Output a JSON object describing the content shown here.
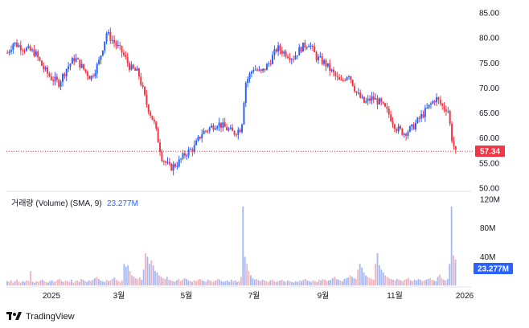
{
  "chart_data": {
    "type": "candlestick",
    "price_axis": {
      "range": [
        50,
        85
      ],
      "ticks": [
        "85.00",
        "80.00",
        "75.00",
        "70.00",
        "65.00",
        "60.00",
        "55.00",
        "50.00"
      ]
    },
    "last_price": "57.34",
    "x_ticks": [
      "2025",
      "3월",
      "5월",
      "7월",
      "9월",
      "11월",
      "2026"
    ],
    "volume": {
      "legend": "거래량 (Volume) (SMA, 9)",
      "sma_value": "23.277M",
      "ticks": [
        "120M",
        "80M",
        "40M"
      ],
      "range": [
        0,
        120
      ],
      "sma_tag": "23.277M"
    },
    "price_path": [
      [
        0,
        77
      ],
      [
        3,
        79
      ],
      [
        8,
        78
      ],
      [
        14,
        77
      ],
      [
        18,
        74
      ],
      [
        22,
        72
      ],
      [
        26,
        71
      ],
      [
        30,
        74
      ],
      [
        34,
        76
      ],
      [
        38,
        74
      ],
      [
        42,
        72
      ],
      [
        46,
        75
      ],
      [
        50,
        81
      ],
      [
        54,
        79
      ],
      [
        58,
        77
      ],
      [
        62,
        74
      ],
      [
        66,
        73
      ],
      [
        70,
        67
      ],
      [
        74,
        63
      ],
      [
        78,
        56
      ],
      [
        82,
        54
      ],
      [
        86,
        55
      ],
      [
        90,
        57
      ],
      [
        94,
        58
      ],
      [
        98,
        61
      ],
      [
        102,
        62
      ],
      [
        106,
        63
      ],
      [
        110,
        62
      ],
      [
        114,
        61
      ],
      [
        118,
        62
      ],
      [
        120,
        71
      ],
      [
        124,
        74
      ],
      [
        128,
        73
      ],
      [
        132,
        75
      ],
      [
        136,
        78
      ],
      [
        140,
        77
      ],
      [
        144,
        76
      ],
      [
        148,
        78
      ],
      [
        152,
        79
      ],
      [
        156,
        76
      ],
      [
        160,
        75
      ],
      [
        164,
        73
      ],
      [
        168,
        71
      ],
      [
        172,
        73
      ],
      [
        176,
        69
      ],
      [
        180,
        67
      ],
      [
        184,
        68
      ],
      [
        188,
        67
      ],
      [
        192,
        65
      ],
      [
        196,
        62
      ],
      [
        200,
        61
      ],
      [
        204,
        62
      ],
      [
        208,
        64
      ],
      [
        212,
        66
      ],
      [
        216,
        68
      ],
      [
        220,
        66
      ],
      [
        222,
        66
      ],
      [
        224,
        60
      ],
      [
        226,
        57
      ]
    ],
    "volume_bars": [
      6,
      5,
      7,
      4,
      6,
      8,
      5,
      4,
      6,
      5,
      7,
      6,
      20,
      5,
      4,
      6,
      5,
      7,
      8,
      6,
      5,
      4,
      6,
      7,
      5,
      6,
      8,
      9,
      6,
      5,
      7,
      6,
      5,
      8,
      4,
      6,
      7,
      5,
      9,
      8,
      6,
      5,
      7,
      6,
      8,
      10,
      12,
      9,
      7,
      6,
      5,
      8,
      6,
      7,
      9,
      11,
      8,
      6,
      5,
      7,
      30,
      26,
      28,
      20,
      14,
      12,
      10,
      9,
      11,
      8,
      22,
      45,
      40,
      30,
      35,
      28,
      20,
      18,
      14,
      12,
      10,
      9,
      12,
      8,
      7,
      6,
      5,
      7,
      9,
      6,
      8,
      10,
      9,
      7,
      6,
      5,
      7,
      6,
      8,
      9,
      7,
      6,
      5,
      8,
      7,
      6,
      5,
      7,
      9,
      8,
      6,
      5,
      6,
      7,
      5,
      8,
      6,
      7,
      5,
      6,
      12,
      110,
      40,
      30,
      20,
      14,
      10,
      8,
      9,
      7,
      6,
      8,
      7,
      6,
      5,
      7,
      8,
      6,
      5,
      6,
      7,
      8,
      6,
      5,
      7,
      6,
      5,
      4,
      6,
      5,
      7,
      6,
      8,
      9,
      7,
      6,
      5,
      7,
      6,
      5,
      8,
      7,
      9,
      8,
      6,
      7,
      8,
      10,
      12,
      9,
      8,
      7,
      6,
      9,
      10,
      11,
      14,
      12,
      10,
      9,
      22,
      30,
      25,
      18,
      14,
      12,
      10,
      9,
      8,
      30,
      45,
      28,
      22,
      18,
      14,
      12,
      10,
      9,
      8,
      7,
      9,
      8,
      7,
      6,
      8,
      9,
      10,
      7,
      6,
      8,
      7,
      9,
      8,
      6,
      7,
      8,
      9,
      10,
      8,
      7,
      6,
      12,
      15,
      10,
      8,
      7,
      9,
      30,
      110,
      42,
      36
    ]
  }
}
